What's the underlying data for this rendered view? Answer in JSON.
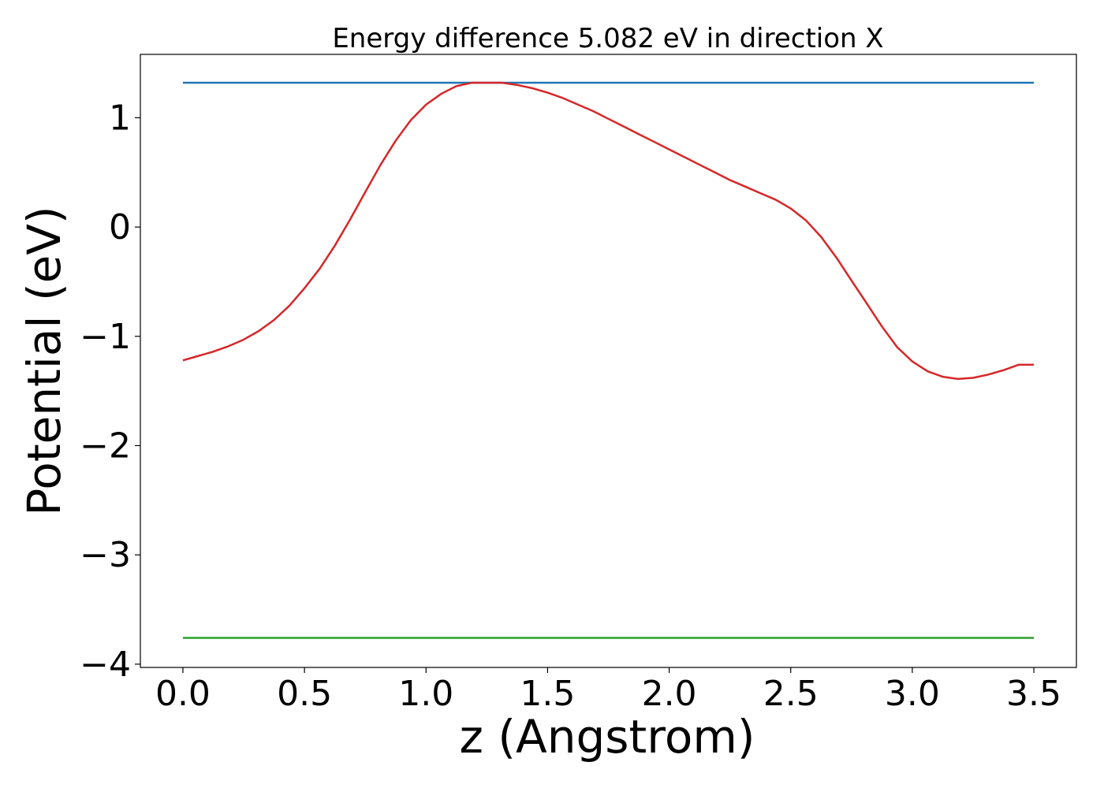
{
  "chart_data": {
    "type": "line",
    "title": "Energy difference 5.082 eV in direction X",
    "xlabel": "z (Angstrom)",
    "ylabel": "Potential (eV)",
    "xlim": [
      -0.175,
      3.675
    ],
    "ylim": [
      -4.03,
      1.58
    ],
    "x_ticks": [
      0.0,
      0.5,
      1.0,
      1.5,
      2.0,
      2.5,
      3.0,
      3.5
    ],
    "x_tick_labels": [
      "0.0",
      "0.5",
      "1.0",
      "1.5",
      "2.0",
      "2.5",
      "3.0",
      "3.5"
    ],
    "y_ticks": [
      -4,
      -3,
      -2,
      -1,
      0,
      1
    ],
    "y_tick_labels": [
      "−4",
      "−3",
      "−2",
      "−1",
      "0",
      "1"
    ],
    "grid": false,
    "series": [
      {
        "color": "#1f77b4",
        "x": [
          0.0,
          3.5
        ],
        "y": [
          1.32,
          1.32
        ]
      },
      {
        "color": "#d62728",
        "x": [
          0.0,
          0.063,
          0.125,
          0.188,
          0.25,
          0.313,
          0.375,
          0.438,
          0.5,
          0.563,
          0.625,
          0.688,
          0.75,
          0.813,
          0.875,
          0.938,
          1.0,
          1.063,
          1.125,
          1.188,
          1.25,
          1.313,
          1.375,
          1.438,
          1.5,
          1.563,
          1.625,
          1.688,
          1.75,
          1.813,
          1.875,
          1.938,
          2.0,
          2.063,
          2.125,
          2.188,
          2.25,
          2.313,
          2.375,
          2.438,
          2.5,
          2.563,
          2.625,
          2.688,
          2.75,
          2.813,
          2.875,
          2.938,
          3.0,
          3.063,
          3.125,
          3.188,
          3.25,
          3.313,
          3.375,
          3.438,
          3.5
        ],
        "y": [
          -1.22,
          -1.18,
          -1.14,
          -1.09,
          -1.03,
          -0.95,
          -0.85,
          -0.72,
          -0.56,
          -0.38,
          -0.17,
          0.07,
          0.32,
          0.57,
          0.79,
          0.98,
          1.12,
          1.22,
          1.29,
          1.32,
          1.32,
          1.32,
          1.3,
          1.27,
          1.23,
          1.18,
          1.12,
          1.06,
          0.99,
          0.92,
          0.85,
          0.78,
          0.71,
          0.64,
          0.57,
          0.5,
          0.43,
          0.37,
          0.31,
          0.25,
          0.17,
          0.06,
          -0.09,
          -0.28,
          -0.49,
          -0.7,
          -0.91,
          -1.1,
          -1.23,
          -1.32,
          -1.37,
          -1.39,
          -1.38,
          -1.35,
          -1.31,
          -1.26,
          -1.26
        ]
      },
      {
        "color": "#2ca02c",
        "x": [
          0.0,
          3.5
        ],
        "y": [
          -3.76,
          -3.76
        ]
      }
    ]
  }
}
